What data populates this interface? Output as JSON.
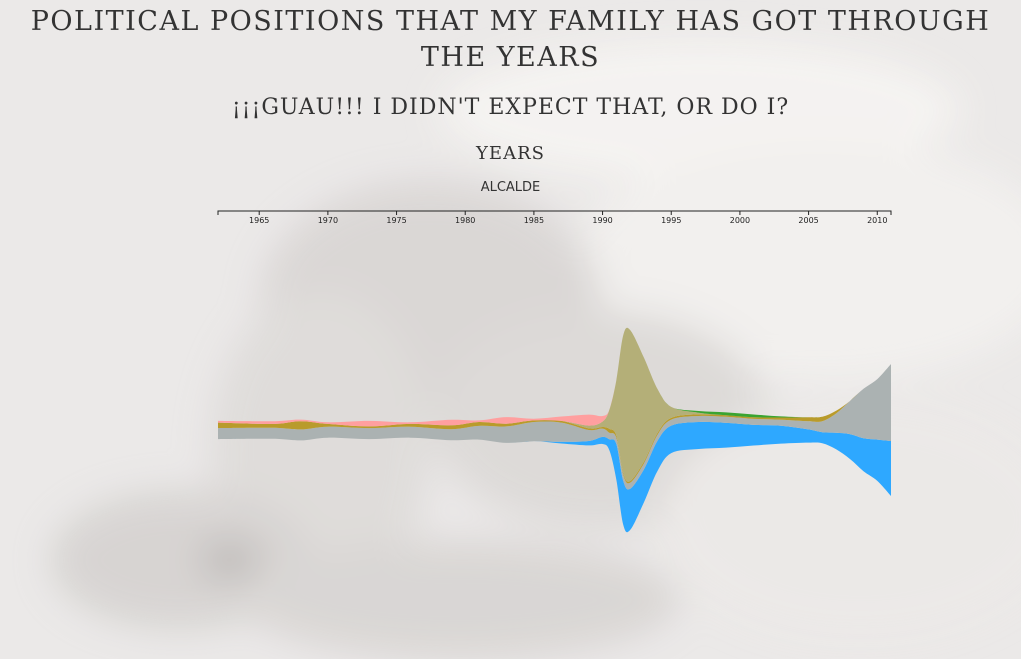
{
  "title": "POLITICAL POSITIONS THAT MY FAMILY HAS GOT THROUGH THE YEARS",
  "subtitle": "¡¡¡GUAU!!! I DIDN'T EXPECT THAT, OR DO I?",
  "chart_data": {
    "type": "area",
    "title": "POLITICAL POSITIONS THAT MY FAMILY HAS GOT THROUGH THE YEARS",
    "subtitle": "¡¡¡GUAU!!! I DIDN'T EXPECT THAT, OR DO I?",
    "xlabel": "YEARS",
    "selected_series": "ALCALDE",
    "xlim": [
      1962,
      2011
    ],
    "xticks": [
      1965,
      1970,
      1975,
      1980,
      1985,
      1990,
      1995,
      2000,
      2005,
      2010
    ],
    "x": [
      1962,
      1966,
      1968,
      1970,
      1973,
      1976,
      1979,
      1981,
      1983,
      1985,
      1987,
      1989,
      1990,
      1990.5,
      1991,
      1991.5,
      1992,
      1993,
      1994,
      1995,
      1997,
      1999,
      2001,
      2003,
      2005,
      2006,
      2007,
      2008,
      2009,
      2010,
      2011
    ],
    "series": [
      {
        "color": "#2ea8ff",
        "values": [
          0,
          0,
          0,
          0,
          0,
          0,
          0,
          0,
          0,
          0,
          0.6,
          1.6,
          2.6,
          4,
          13,
          16,
          15,
          12,
          11,
          10,
          9.8,
          9,
          7.5,
          6.5,
          4.8,
          4,
          6,
          9,
          12,
          15,
          20
        ]
      },
      {
        "color": "#abb2b2",
        "values": [
          4,
          4,
          4,
          4,
          4,
          4,
          4,
          5,
          6,
          7,
          7,
          4,
          3,
          2.4,
          2.2,
          2.2,
          2.2,
          2.2,
          2.2,
          2.2,
          2.2,
          2.2,
          2.2,
          2.2,
          3,
          4,
          7,
          12,
          18,
          22,
          28
        ]
      },
      {
        "color": "#b99b2b",
        "values": [
          2,
          1.4,
          3,
          1,
          0.6,
          1,
          1.4,
          1.4,
          1,
          0.6,
          0.6,
          0.6,
          0.6,
          1.4,
          0.8,
          0.6,
          0.6,
          0.6,
          0.6,
          0.6,
          0.6,
          0.6,
          0.6,
          0.8,
          1.4,
          1.6,
          1,
          0,
          0,
          0,
          0
        ]
      },
      {
        "color": "#b4af78",
        "values": [
          0,
          0,
          0,
          0,
          0,
          0,
          0,
          0,
          0,
          0,
          0,
          1,
          2,
          7,
          20,
          50,
          55,
          38,
          16,
          4,
          0.6,
          0,
          0,
          0,
          0,
          0,
          0,
          0,
          0,
          0,
          0
        ]
      },
      {
        "color": "#ff9f9f",
        "values": [
          0.6,
          1,
          0.6,
          0.6,
          2,
          0.6,
          2,
          0.6,
          2.4,
          0.6,
          1.6,
          4,
          2,
          0,
          0,
          0,
          0,
          0,
          0,
          0,
          0,
          0,
          0,
          0,
          0,
          0,
          0,
          0,
          0,
          0,
          0
        ]
      },
      {
        "color": "#3aa431",
        "values": [
          0,
          0,
          0,
          0,
          0,
          0,
          0,
          0,
          0,
          0,
          0,
          0,
          0,
          0,
          0,
          0,
          0,
          0,
          0,
          0,
          0.6,
          1,
          1,
          0.4,
          0,
          0,
          0,
          0,
          0,
          0,
          0
        ]
      }
    ]
  }
}
